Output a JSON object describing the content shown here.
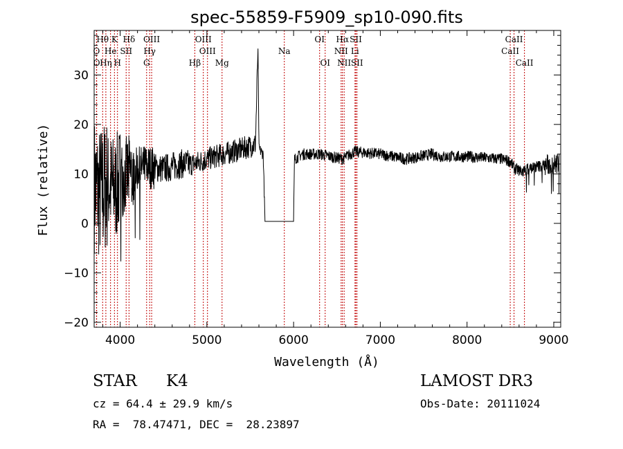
{
  "chart_data": {
    "type": "line",
    "title": "spec-55859-F5909_sp10-090.fits",
    "xlabel": "Wavelength (Å)",
    "ylabel": "Flux (relative)",
    "xlim": [
      3700,
      9080
    ],
    "ylim": [
      -21,
      39
    ],
    "xticks": [
      4000,
      5000,
      6000,
      7000,
      8000,
      9000
    ],
    "yticks": [
      -20,
      -10,
      0,
      10,
      20,
      30
    ],
    "xtick_labels": [
      "4000",
      "5000",
      "6000",
      "7000",
      "8000",
      "9000"
    ],
    "ytick_labels": [
      "−20",
      "−10",
      "0",
      "10",
      "20",
      "30"
    ],
    "line_color": "#000000",
    "marker_color": "#c00000",
    "lines": [
      {
        "label": "Hθ",
        "wave": 3798,
        "row": 0
      },
      {
        "label": "O",
        "wave": 3727,
        "row": 1
      },
      {
        "label": "O",
        "wave": 3729,
        "row": 2
      },
      {
        "label": "K",
        "wave": 3934,
        "row": 0
      },
      {
        "label": "He",
        "wave": 3889,
        "row": 1
      },
      {
        "label": "Hη",
        "wave": 3835,
        "row": 2
      },
      {
        "label": "H",
        "wave": 3969,
        "row": 2
      },
      {
        "label": "SII",
        "wave": 4069,
        "row": 1
      },
      {
        "label": "Hδ",
        "wave": 4102,
        "row": 0
      },
      {
        "label": "OIII",
        "wave": 4363,
        "row": 0
      },
      {
        "label": "Hγ",
        "wave": 4340,
        "row": 1
      },
      {
        "label": "G",
        "wave": 4305,
        "row": 2
      },
      {
        "label": "Hβ",
        "wave": 4861,
        "row": 2
      },
      {
        "label": "OIII",
        "wave": 4959,
        "row": 0
      },
      {
        "label": "OIII",
        "wave": 5007,
        "row": 1
      },
      {
        "label": "Mg",
        "wave": 5175,
        "row": 2
      },
      {
        "label": "Na",
        "wave": 5893,
        "row": 1
      },
      {
        "label": "OI",
        "wave": 6300,
        "row": 0
      },
      {
        "label": "OI",
        "wave": 6364,
        "row": 2
      },
      {
        "label": "Hα",
        "wave": 6563,
        "row": 0
      },
      {
        "label": "NII",
        "wave": 6548,
        "row": 1
      },
      {
        "label": "NII",
        "wave": 6583,
        "row": 2
      },
      {
        "label": "SII",
        "wave": 6717,
        "row": 0
      },
      {
        "label": "Li",
        "wave": 6708,
        "row": 1
      },
      {
        "label": "SII",
        "wave": 6731,
        "row": 2
      },
      {
        "label": "CaII",
        "wave": 8542,
        "row": 0
      },
      {
        "label": "CaII",
        "wave": 8498,
        "row": 1
      },
      {
        "label": "CaII",
        "wave": 8662,
        "row": 2
      }
    ],
    "spectrum_anchors": [
      [
        3700,
        8
      ],
      [
        3760,
        6
      ],
      [
        3850,
        8
      ],
      [
        3950,
        7
      ],
      [
        4000,
        9
      ],
      [
        4100,
        10
      ],
      [
        4200,
        11
      ],
      [
        4300,
        11.5
      ],
      [
        4500,
        11
      ],
      [
        4700,
        12
      ],
      [
        4850,
        12
      ],
      [
        5000,
        13
      ],
      [
        5200,
        14
      ],
      [
        5400,
        15
      ],
      [
        5560,
        16
      ],
      [
        5590,
        36
      ],
      [
        5600,
        15
      ],
      [
        5650,
        14
      ],
      [
        5663,
        5
      ],
      [
        5670,
        0.4
      ],
      [
        6000,
        0.4
      ],
      [
        6010,
        13
      ],
      [
        6100,
        14
      ],
      [
        6300,
        14
      ],
      [
        6563,
        13
      ],
      [
        6700,
        14.5
      ],
      [
        7000,
        14
      ],
      [
        7300,
        13
      ],
      [
        7600,
        14
      ],
      [
        7700,
        13.5
      ],
      [
        8000,
        13.5
      ],
      [
        8400,
        13
      ],
      [
        8500,
        12.5
      ],
      [
        8550,
        11
      ],
      [
        8650,
        10.5
      ],
      [
        8700,
        11
      ],
      [
        8800,
        11.5
      ],
      [
        9000,
        12
      ],
      [
        9060,
        12
      ]
    ]
  },
  "info": {
    "object_class": "STAR",
    "subclass": "K4",
    "survey": "LAMOST DR3",
    "cz": "cz = 64.4 ± 29.9 km/s",
    "obs_date": "Obs-Date: 20111024",
    "coords": "RA =  78.47471, DEC =  28.23897"
  }
}
